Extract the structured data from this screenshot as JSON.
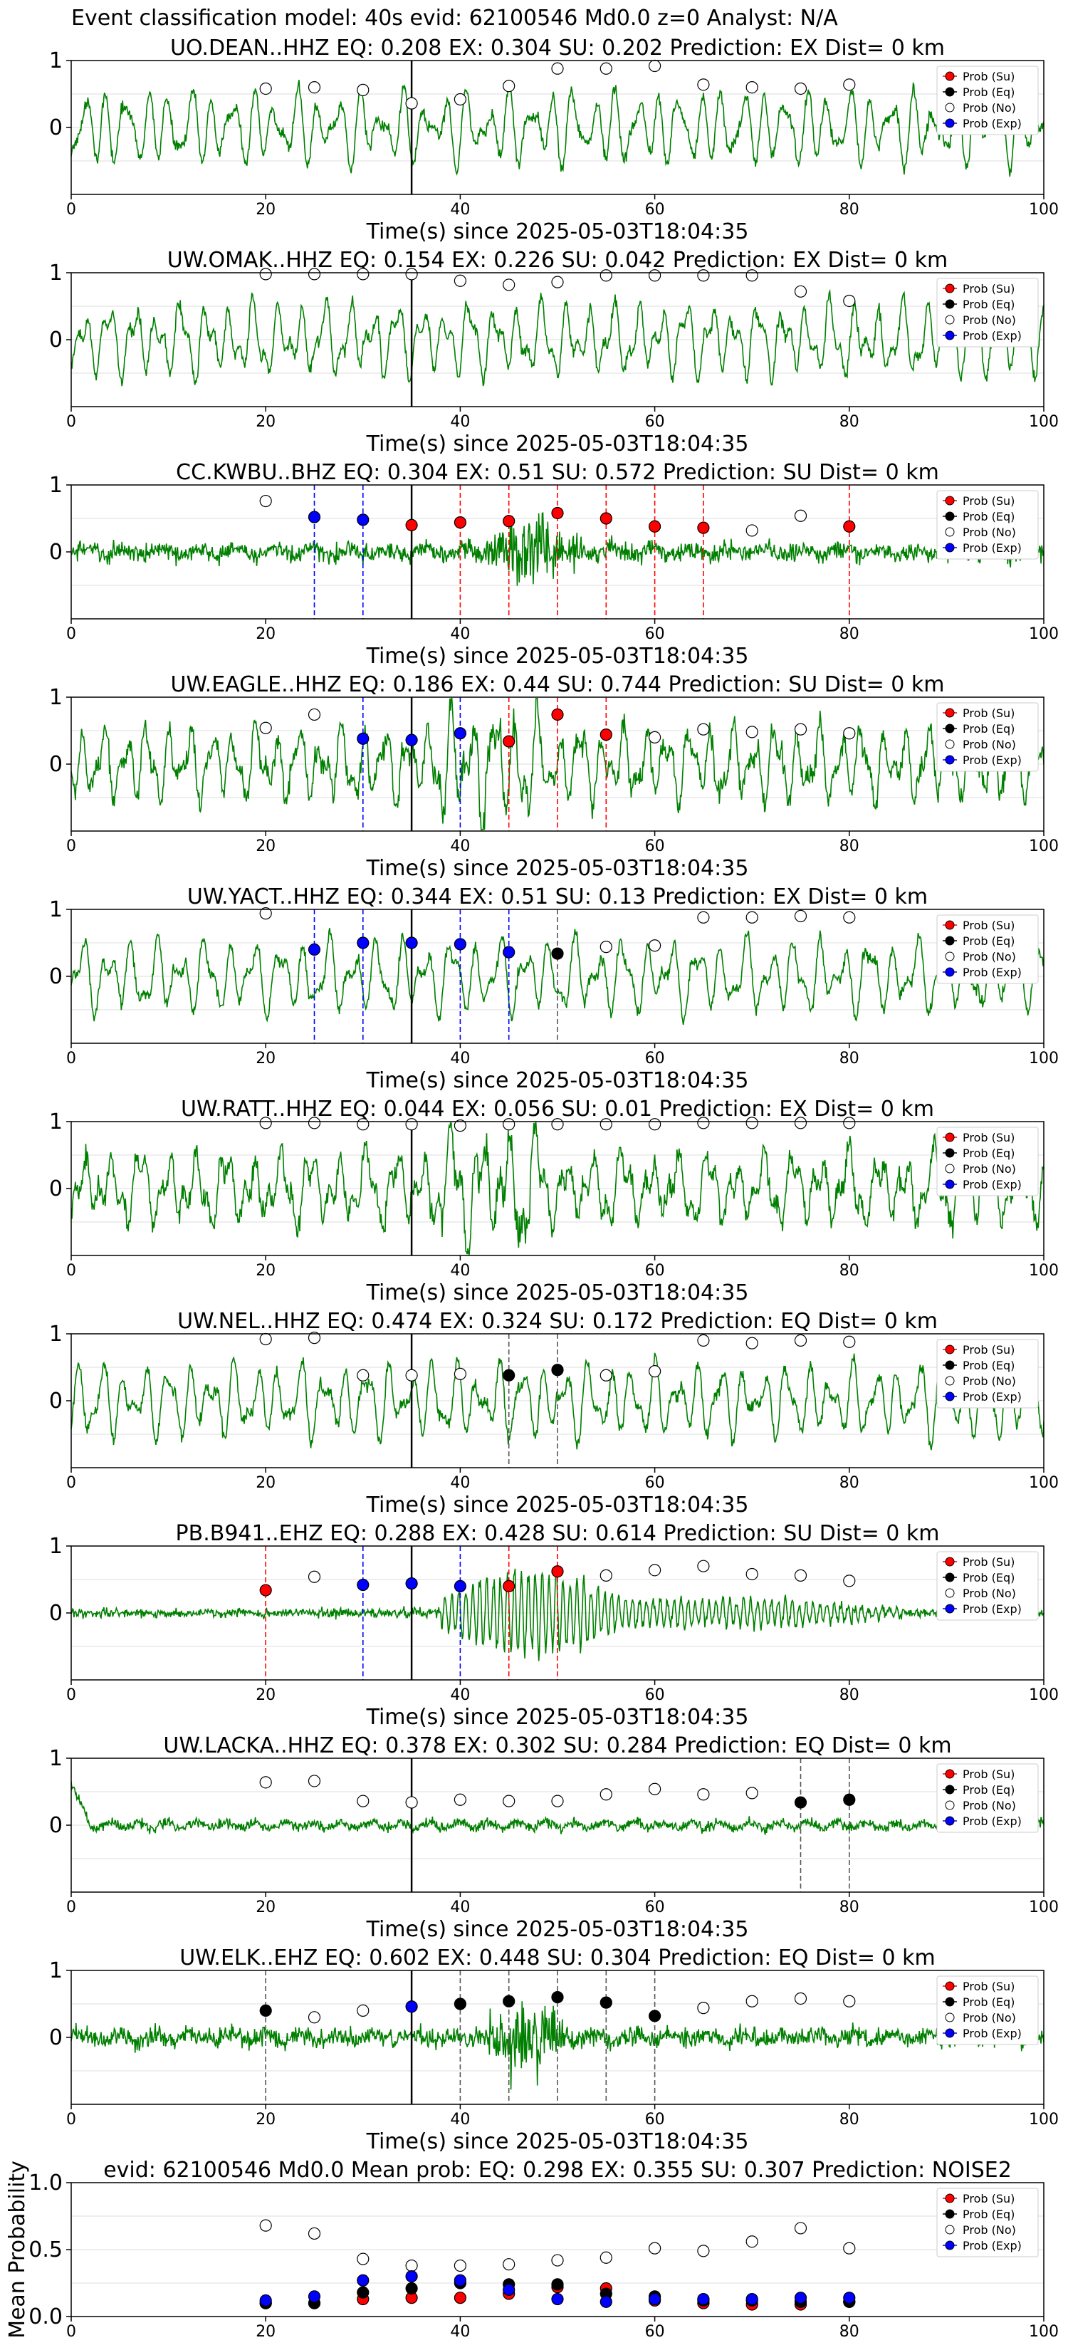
{
  "suptitle": "Event classification model: 40s evid: 62100546 Md0.0 z=0 Analyst: N/A",
  "colors": {
    "waveform": "#008000",
    "su": "#ff0000",
    "eq": "#000000",
    "no": "#ffffff",
    "exp": "#0000ff",
    "axis": "#000000",
    "grid": "#dddddd"
  },
  "legend_labels": [
    "Prob (Su)",
    "Prob (Eq)",
    "Prob (No)",
    "Prob (Exp)"
  ],
  "chart_data": [
    {
      "type": "line",
      "title": "UO.DEAN..HHZ   EQ: 0.208  EX: 0.304  SU: 0.202   Prediction: EX    Dist= 0 km",
      "xlabel": "Time(s) since 2025-05-03T18:04:35",
      "xlim": [
        0,
        100
      ],
      "ylim": [
        -1,
        1
      ],
      "xticks": [
        0,
        20,
        40,
        60,
        80,
        100
      ],
      "yticks": [
        0,
        1
      ],
      "legend": "top-right",
      "waveform_style": "long-period",
      "vline": 35,
      "series": [
        {
          "name": "Prob (Su)",
          "x": [],
          "y": []
        },
        {
          "name": "Prob (Eq)",
          "x": [],
          "y": []
        },
        {
          "name": "Prob (No)",
          "x": [
            20,
            25,
            30,
            35,
            40,
            45,
            50,
            55,
            60,
            65,
            70,
            75,
            80
          ],
          "y": [
            0.58,
            0.6,
            0.56,
            0.36,
            0.42,
            0.62,
            0.88,
            0.88,
            0.92,
            0.64,
            0.6,
            0.58,
            0.64
          ]
        },
        {
          "name": "Prob (Exp)",
          "x": [],
          "y": []
        }
      ],
      "markers": []
    },
    {
      "type": "line",
      "title": "UW.OMAK..HHZ   EQ: 0.154  EX: 0.226  SU: 0.042   Prediction: EX    Dist= 0 km",
      "xlabel": "Time(s) since 2025-05-03T18:04:35",
      "xlim": [
        0,
        100
      ],
      "ylim": [
        -1,
        1
      ],
      "xticks": [
        0,
        20,
        40,
        60,
        80,
        100
      ],
      "yticks": [
        0,
        1
      ],
      "legend": "top-right",
      "waveform_style": "long-period",
      "vline": 35,
      "series": [
        {
          "name": "Prob (Su)",
          "x": [],
          "y": []
        },
        {
          "name": "Prob (Eq)",
          "x": [],
          "y": []
        },
        {
          "name": "Prob (No)",
          "x": [
            20,
            25,
            30,
            35,
            40,
            45,
            50,
            55,
            60,
            65,
            70,
            75,
            80
          ],
          "y": [
            0.98,
            0.98,
            0.98,
            0.98,
            0.88,
            0.82,
            0.86,
            0.96,
            0.96,
            0.96,
            0.96,
            0.72,
            0.58
          ]
        },
        {
          "name": "Prob (Exp)",
          "x": [],
          "y": []
        }
      ],
      "markers": []
    },
    {
      "type": "line",
      "title": "CC.KWBU..BHZ   EQ: 0.304  EX: 0.51  SU: 0.572   Prediction: SU    Dist= 0 km",
      "xlabel": "Time(s) since 2025-05-03T18:04:35",
      "xlim": [
        0,
        100
      ],
      "ylim": [
        -1,
        1
      ],
      "xticks": [
        0,
        20,
        40,
        60,
        80,
        100
      ],
      "yticks": [
        0,
        1
      ],
      "legend": "top-right",
      "waveform_style": "noisy",
      "vline": 35,
      "series": [
        {
          "name": "Prob (Su)",
          "x": [
            35,
            40,
            45,
            50,
            55,
            60,
            65,
            80
          ],
          "y": [
            0.4,
            0.44,
            0.46,
            0.58,
            0.5,
            0.38,
            0.36,
            0.38
          ]
        },
        {
          "name": "Prob (Eq)",
          "x": [],
          "y": []
        },
        {
          "name": "Prob (No)",
          "x": [
            20,
            70,
            75
          ],
          "y": [
            0.76,
            0.32,
            0.54
          ]
        },
        {
          "name": "Prob (Exp)",
          "x": [
            25,
            30
          ],
          "y": [
            0.52,
            0.48
          ]
        }
      ],
      "markers": [
        {
          "x": 25,
          "color": "#0000ff"
        },
        {
          "x": 30,
          "color": "#0000ff"
        },
        {
          "x": 40,
          "color": "#ff0000"
        },
        {
          "x": 45,
          "color": "#ff0000"
        },
        {
          "x": 50,
          "color": "#ff0000"
        },
        {
          "x": 55,
          "color": "#ff0000"
        },
        {
          "x": 60,
          "color": "#ff0000"
        },
        {
          "x": 65,
          "color": "#ff0000"
        },
        {
          "x": 80,
          "color": "#ff0000"
        }
      ]
    },
    {
      "type": "line",
      "title": "UW.EAGLE..HHZ   EQ: 0.186  EX: 0.44  SU: 0.744   Prediction: SU    Dist= 0 km",
      "xlabel": "Time(s) since 2025-05-03T18:04:35",
      "xlim": [
        0,
        100
      ],
      "ylim": [
        -1,
        1
      ],
      "xticks": [
        0,
        20,
        40,
        60,
        80,
        100
      ],
      "yticks": [
        0,
        1
      ],
      "legend": "top-right",
      "waveform_style": "mixed",
      "vline": 35,
      "series": [
        {
          "name": "Prob (Su)",
          "x": [
            45,
            50,
            55
          ],
          "y": [
            0.34,
            0.74,
            0.44
          ]
        },
        {
          "name": "Prob (Eq)",
          "x": [],
          "y": []
        },
        {
          "name": "Prob (No)",
          "x": [
            20,
            25,
            60,
            65,
            70,
            75,
            80
          ],
          "y": [
            0.54,
            0.74,
            0.4,
            0.52,
            0.48,
            0.52,
            0.46
          ]
        },
        {
          "name": "Prob (Exp)",
          "x": [
            30,
            35,
            40
          ],
          "y": [
            0.38,
            0.36,
            0.46
          ]
        }
      ],
      "markers": [
        {
          "x": 30,
          "color": "#0000ff"
        },
        {
          "x": 40,
          "color": "#0000ff"
        },
        {
          "x": 45,
          "color": "#ff0000"
        },
        {
          "x": 50,
          "color": "#ff0000"
        },
        {
          "x": 55,
          "color": "#ff0000"
        }
      ]
    },
    {
      "type": "line",
      "title": "UW.YACT..HHZ   EQ: 0.344  EX: 0.51  SU: 0.13   Prediction: EX    Dist= 0 km",
      "xlabel": "Time(s) since 2025-05-03T18:04:35",
      "xlim": [
        0,
        100
      ],
      "ylim": [
        -1,
        1
      ],
      "xticks": [
        0,
        20,
        40,
        60,
        80,
        100
      ],
      "yticks": [
        0,
        1
      ],
      "legend": "top-right",
      "waveform_style": "long-period",
      "vline": 35,
      "series": [
        {
          "name": "Prob (Su)",
          "x": [],
          "y": []
        },
        {
          "name": "Prob (Eq)",
          "x": [
            50
          ],
          "y": [
            0.34
          ]
        },
        {
          "name": "Prob (No)",
          "x": [
            20,
            55,
            60,
            65,
            70,
            75,
            80
          ],
          "y": [
            0.94,
            0.44,
            0.46,
            0.88,
            0.88,
            0.9,
            0.88
          ]
        },
        {
          "name": "Prob (Exp)",
          "x": [
            25,
            30,
            35,
            40,
            45
          ],
          "y": [
            0.4,
            0.5,
            0.5,
            0.48,
            0.36
          ]
        }
      ],
      "markers": [
        {
          "x": 25,
          "color": "#0000ff"
        },
        {
          "x": 30,
          "color": "#0000ff"
        },
        {
          "x": 40,
          "color": "#0000ff"
        },
        {
          "x": 45,
          "color": "#0000ff"
        },
        {
          "x": 50,
          "color": "#555555"
        }
      ]
    },
    {
      "type": "line",
      "title": "UW.RATT..HHZ   EQ: 0.044  EX: 0.056  SU: 0.01   Prediction: EX    Dist= 0 km",
      "xlabel": "Time(s) since 2025-05-03T18:04:35",
      "xlim": [
        0,
        100
      ],
      "ylim": [
        -1,
        1
      ],
      "xticks": [
        0,
        20,
        40,
        60,
        80,
        100
      ],
      "yticks": [
        0,
        1
      ],
      "legend": "top-right",
      "waveform_style": "mixed",
      "vline": 35,
      "series": [
        {
          "name": "Prob (Su)",
          "x": [],
          "y": []
        },
        {
          "name": "Prob (Eq)",
          "x": [],
          "y": []
        },
        {
          "name": "Prob (No)",
          "x": [
            20,
            25,
            30,
            35,
            40,
            45,
            50,
            55,
            60,
            65,
            70,
            75,
            80
          ],
          "y": [
            0.98,
            0.98,
            0.96,
            0.96,
            0.94,
            0.96,
            0.96,
            0.96,
            0.96,
            0.98,
            0.98,
            0.98,
            0.98
          ]
        },
        {
          "name": "Prob (Exp)",
          "x": [],
          "y": []
        }
      ],
      "markers": []
    },
    {
      "type": "line",
      "title": "UW.NEL..HHZ   EQ: 0.474  EX: 0.324  SU: 0.172   Prediction: EQ    Dist= 0 km",
      "xlabel": "Time(s) since 2025-05-03T18:04:35",
      "xlim": [
        0,
        100
      ],
      "ylim": [
        -1,
        1
      ],
      "xticks": [
        0,
        20,
        40,
        60,
        80,
        100
      ],
      "yticks": [
        0,
        1
      ],
      "legend": "top-right",
      "waveform_style": "long-period",
      "vline": 35,
      "series": [
        {
          "name": "Prob (Su)",
          "x": [],
          "y": []
        },
        {
          "name": "Prob (Eq)",
          "x": [
            45,
            50
          ],
          "y": [
            0.38,
            0.46
          ]
        },
        {
          "name": "Prob (No)",
          "x": [
            20,
            25,
            30,
            35,
            40,
            55,
            60,
            65,
            70,
            75,
            80
          ],
          "y": [
            0.92,
            0.94,
            0.38,
            0.38,
            0.4,
            0.38,
            0.44,
            0.9,
            0.86,
            0.9,
            0.88
          ]
        },
        {
          "name": "Prob (Exp)",
          "x": [],
          "y": []
        }
      ],
      "markers": [
        {
          "x": 45,
          "color": "#555555"
        },
        {
          "x": 50,
          "color": "#555555"
        }
      ]
    },
    {
      "type": "line",
      "title": "PB.B941..EHZ   EQ: 0.288  EX: 0.428  SU: 0.614   Prediction: SU    Dist= 0 km",
      "xlabel": "Time(s) since 2025-05-03T18:04:35",
      "xlim": [
        0,
        100
      ],
      "ylim": [
        -1,
        1
      ],
      "xticks": [
        0,
        20,
        40,
        60,
        80,
        100
      ],
      "yticks": [
        0,
        1
      ],
      "legend": "top-right",
      "waveform_style": "burst",
      "vline": 35,
      "series": [
        {
          "name": "Prob (Su)",
          "x": [
            20,
            45,
            50
          ],
          "y": [
            0.34,
            0.4,
            0.62
          ]
        },
        {
          "name": "Prob (Eq)",
          "x": [],
          "y": []
        },
        {
          "name": "Prob (No)",
          "x": [
            25,
            55,
            60,
            65,
            70,
            75,
            80
          ],
          "y": [
            0.54,
            0.56,
            0.64,
            0.7,
            0.58,
            0.56,
            0.48
          ]
        },
        {
          "name": "Prob (Exp)",
          "x": [
            30,
            35,
            40
          ],
          "y": [
            0.42,
            0.44,
            0.4
          ]
        }
      ],
      "markers": [
        {
          "x": 20,
          "color": "#ff0000"
        },
        {
          "x": 30,
          "color": "#0000ff"
        },
        {
          "x": 40,
          "color": "#0000ff"
        },
        {
          "x": 45,
          "color": "#ff0000"
        },
        {
          "x": 50,
          "color": "#ff0000"
        }
      ]
    },
    {
      "type": "line",
      "title": "UW.LACKA..HHZ   EQ: 0.378  EX: 0.302  SU: 0.284   Prediction: EQ    Dist= 0 km",
      "xlabel": "Time(s) since 2025-05-03T18:04:35",
      "xlim": [
        0,
        100
      ],
      "ylim": [
        -1,
        1
      ],
      "xticks": [
        0,
        20,
        40,
        60,
        80,
        100
      ],
      "yticks": [
        0,
        1
      ],
      "legend": "top-right",
      "waveform_style": "quiet",
      "vline": 35,
      "series": [
        {
          "name": "Prob (Su)",
          "x": [],
          "y": []
        },
        {
          "name": "Prob (Eq)",
          "x": [
            75,
            80
          ],
          "y": [
            0.34,
            0.38
          ]
        },
        {
          "name": "Prob (No)",
          "x": [
            20,
            25,
            30,
            35,
            40,
            45,
            50,
            55,
            60,
            65,
            70
          ],
          "y": [
            0.64,
            0.66,
            0.36,
            0.34,
            0.38,
            0.36,
            0.36,
            0.46,
            0.54,
            0.46,
            0.48
          ]
        },
        {
          "name": "Prob (Exp)",
          "x": [],
          "y": []
        }
      ],
      "markers": [
        {
          "x": 75,
          "color": "#555555"
        },
        {
          "x": 80,
          "color": "#555555"
        }
      ]
    },
    {
      "type": "line",
      "title": "UW.ELK..EHZ   EQ: 0.602  EX: 0.448  SU: 0.304   Prediction: EQ    Dist= 0 km",
      "xlabel": "Time(s) since 2025-05-03T18:04:35",
      "xlim": [
        0,
        100
      ],
      "ylim": [
        -1,
        1
      ],
      "xticks": [
        0,
        20,
        40,
        60,
        80,
        100
      ],
      "yticks": [
        0,
        1
      ],
      "legend": "top-right",
      "waveform_style": "noisy",
      "vline": 35,
      "series": [
        {
          "name": "Prob (Su)",
          "x": [],
          "y": []
        },
        {
          "name": "Prob (Eq)",
          "x": [
            20,
            40,
            45,
            50,
            55,
            60
          ],
          "y": [
            0.4,
            0.5,
            0.54,
            0.6,
            0.52,
            0.32
          ]
        },
        {
          "name": "Prob (No)",
          "x": [
            25,
            30,
            65,
            70,
            75,
            80
          ],
          "y": [
            0.3,
            0.4,
            0.44,
            0.54,
            0.58,
            0.54
          ]
        },
        {
          "name": "Prob (Exp)",
          "x": [
            35
          ],
          "y": [
            0.46
          ]
        }
      ],
      "markers": [
        {
          "x": 20,
          "color": "#555555"
        },
        {
          "x": 40,
          "color": "#555555"
        },
        {
          "x": 45,
          "color": "#555555"
        },
        {
          "x": 50,
          "color": "#555555"
        },
        {
          "x": 55,
          "color": "#555555"
        },
        {
          "x": 60,
          "color": "#555555"
        }
      ]
    },
    {
      "type": "scatter",
      "title": "evid: 62100546  Md0.0   Mean prob:   EQ: 0.298  EX: 0.355  SU: 0.307   Prediction: NOISE2",
      "xlabel": "",
      "ylabel": "Mean Probability",
      "xlim": [
        0,
        100
      ],
      "ylim": [
        0,
        1
      ],
      "xticks": [
        0,
        20,
        40,
        60,
        80,
        100
      ],
      "yticks": [
        0.0,
        0.5,
        1.0
      ],
      "yticklabels": [
        "0.0",
        "0.5",
        "1.0"
      ],
      "legend": "top-right",
      "series": [
        {
          "name": "Prob (Su)",
          "x": [
            20,
            25,
            30,
            35,
            40,
            45,
            50,
            55,
            60,
            65,
            70,
            75,
            80
          ],
          "y": [
            0.1,
            0.1,
            0.13,
            0.14,
            0.14,
            0.17,
            0.22,
            0.21,
            0.12,
            0.1,
            0.09,
            0.09,
            0.11
          ]
        },
        {
          "name": "Prob (Eq)",
          "x": [
            20,
            25,
            30,
            35,
            40,
            45,
            50,
            55,
            60,
            65,
            70,
            75,
            80
          ],
          "y": [
            0.1,
            0.1,
            0.18,
            0.21,
            0.25,
            0.24,
            0.24,
            0.17,
            0.15,
            0.12,
            0.12,
            0.11,
            0.11
          ]
        },
        {
          "name": "Prob (No)",
          "x": [
            20,
            25,
            30,
            35,
            40,
            45,
            50,
            55,
            60,
            65,
            70,
            75,
            80
          ],
          "y": [
            0.68,
            0.62,
            0.43,
            0.38,
            0.38,
            0.39,
            0.42,
            0.44,
            0.51,
            0.49,
            0.56,
            0.66,
            0.51
          ]
        },
        {
          "name": "Prob (Exp)",
          "x": [
            20,
            25,
            30,
            35,
            40,
            45,
            50,
            55,
            60,
            65,
            70,
            75,
            80
          ],
          "y": [
            0.12,
            0.15,
            0.27,
            0.3,
            0.27,
            0.2,
            0.13,
            0.11,
            0.13,
            0.13,
            0.13,
            0.14,
            0.14
          ]
        }
      ]
    }
  ]
}
